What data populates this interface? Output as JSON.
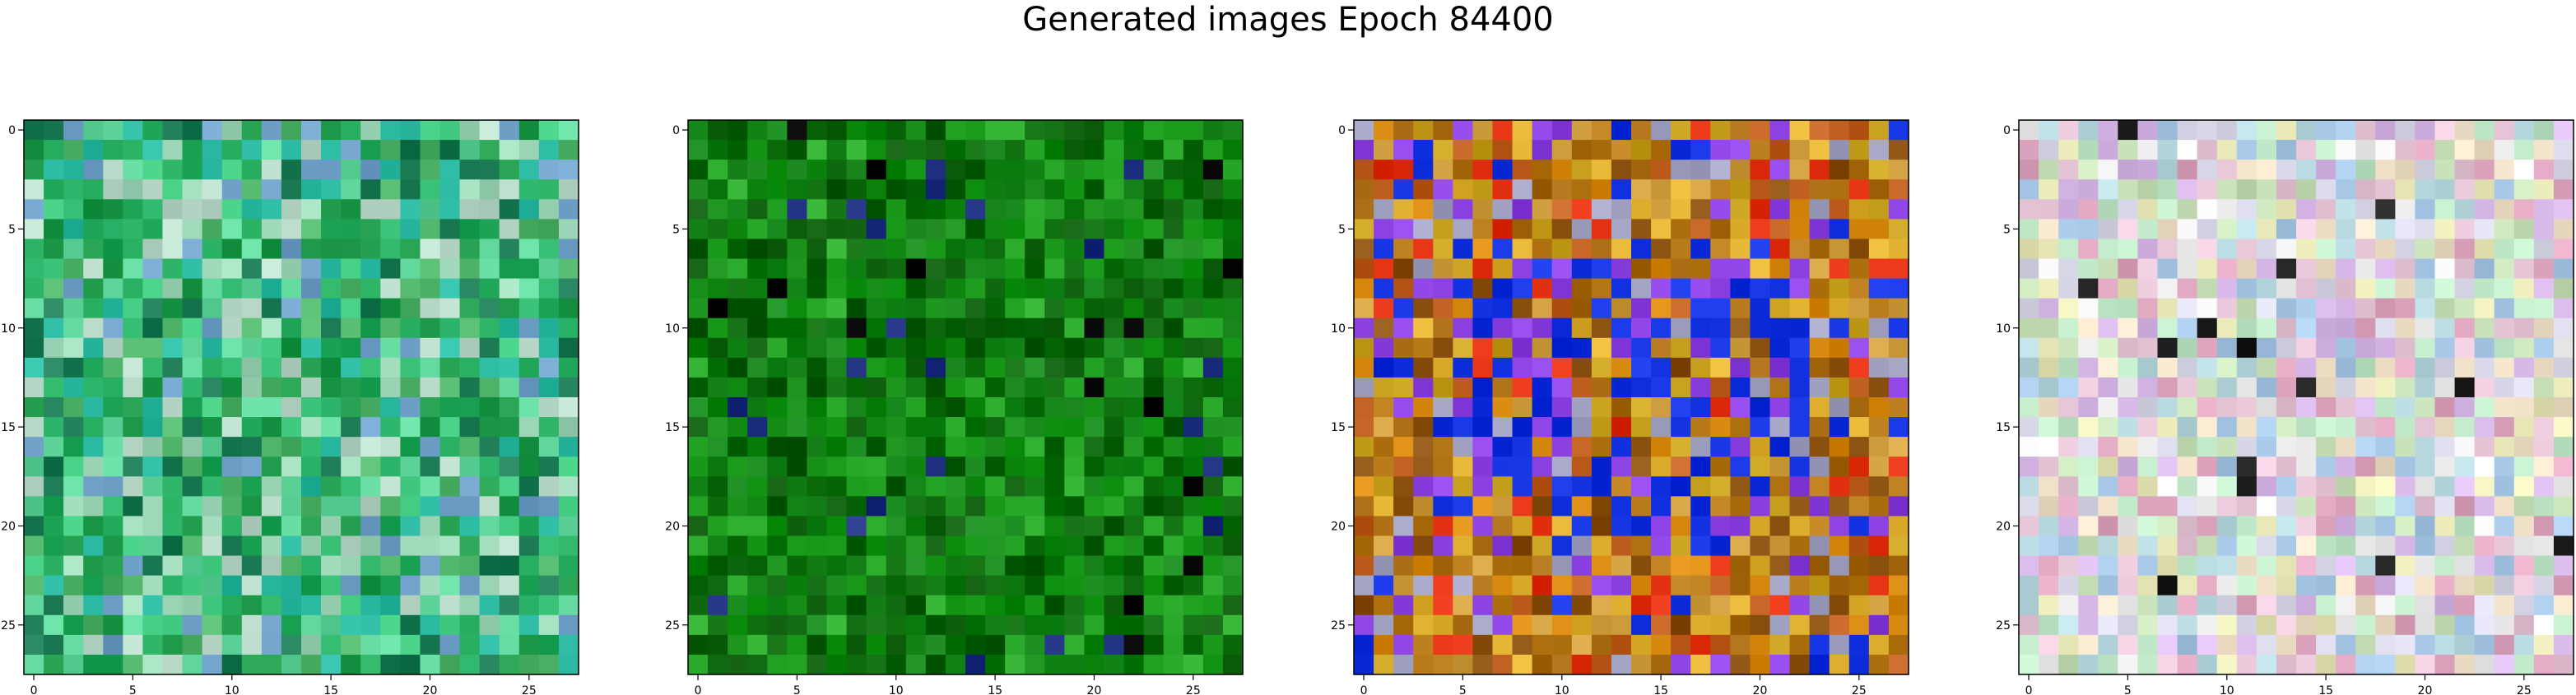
{
  "figure": {
    "title": "Generated images Epoch 84400"
  },
  "chart_data": [
    {
      "type": "heatmap",
      "panel": 1,
      "palette": "green-cyan noise",
      "grid_size": 28,
      "x_ticks": [
        0,
        5,
        10,
        15,
        20,
        25
      ],
      "y_ticks": [
        0,
        5,
        10,
        15,
        20,
        25
      ],
      "xlim": [
        -0.5,
        27.5
      ],
      "ylim": [
        27.5,
        -0.5
      ],
      "base_colors": [
        "#22a85a",
        "#3cc47a",
        "#5fd49a",
        "#9ed6b8",
        "#1f9a4a",
        "#4fb36a",
        "#2bb8a0",
        "#1c7a55",
        "#6fa0c8",
        "#b8d8c8"
      ]
    },
    {
      "type": "heatmap",
      "panel": 2,
      "palette": "dark green noise",
      "grid_size": 28,
      "x_ticks": [
        0,
        5,
        10,
        15,
        20,
        25
      ],
      "y_ticks": [
        0,
        5,
        10,
        15,
        20,
        25
      ],
      "xlim": [
        -0.5,
        27.5
      ],
      "ylim": [
        27.5,
        -0.5
      ],
      "base_colors": [
        "#0a6a0a",
        "#138a13",
        "#0f7a12",
        "#1a9a1a",
        "#0c5c0c",
        "#2aa82a",
        "#066006",
        "#14861a",
        "#000000",
        "#203080"
      ]
    },
    {
      "type": "heatmap",
      "panel": 3,
      "palette": "orange-gold with blue/purple center",
      "grid_size": 28,
      "x_ticks": [
        0,
        5,
        10,
        15,
        20,
        25
      ],
      "y_ticks": [
        0,
        5,
        10,
        15,
        20,
        25
      ],
      "xlim": [
        -0.5,
        27.5
      ],
      "ylim": [
        27.5,
        -0.5
      ],
      "base_colors": [
        "#c8a020",
        "#d88a10",
        "#b87a18",
        "#a86a10",
        "#e0b030",
        "#c06020",
        "#8a5010",
        "#d0a040",
        "#1030e0",
        "#8a40e0",
        "#a0a0c0",
        "#e03010"
      ]
    },
    {
      "type": "heatmap",
      "panel": 4,
      "palette": "pastel noise",
      "grid_size": 28,
      "x_ticks": [
        0,
        5,
        10,
        15,
        20,
        25
      ],
      "y_ticks": [
        0,
        5,
        10,
        15,
        20,
        25
      ],
      "xlim": [
        -0.5,
        27.5
      ],
      "ylim": [
        27.5,
        -0.5
      ],
      "base_colors": [
        "#e8c8d8",
        "#c8e0b8",
        "#d8d8e8",
        "#f0e0c8",
        "#b8d8e0",
        "#e0a8c0",
        "#c0e8c8",
        "#e8e8b8",
        "#a8c8e8",
        "#d8b8e8",
        "#202020",
        "#f0f0f0"
      ]
    }
  ]
}
